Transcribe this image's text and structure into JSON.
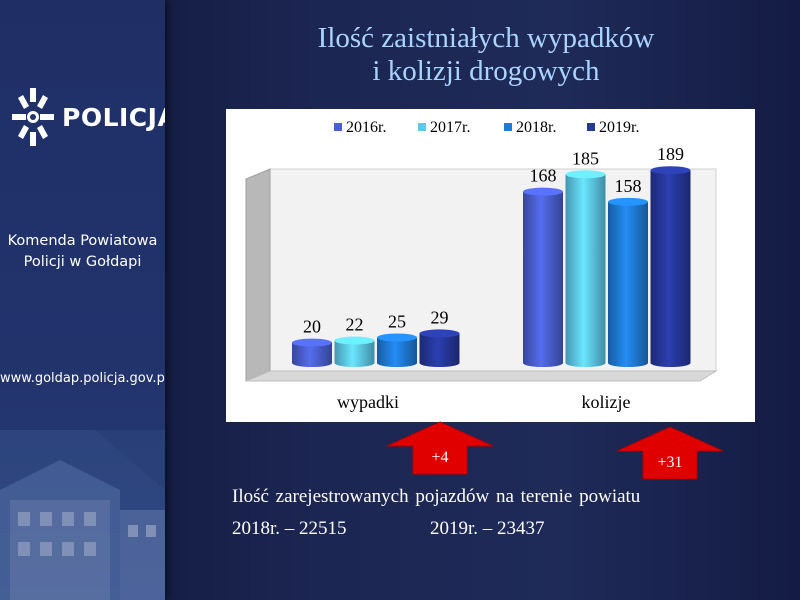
{
  "sidebar": {
    "logo_text": "POLICJA",
    "unit_line1": "Komenda Powiatowa",
    "unit_line2": "Policji w Gołdapi",
    "website": "www.goldap.policja.gov.pl"
  },
  "slide": {
    "title_line1": "Ilość zaistniałych wypadków",
    "title_line2": "i kolizji drogowych",
    "vehicles_title": "Ilość zarejestrowanych pojazdów na terenie powiatu",
    "vehicles_2018": "2018r. – 22515",
    "vehicles_2019": "2019r. – 23437"
  },
  "arrows": [
    {
      "label": "+4"
    },
    {
      "label": "+31"
    }
  ],
  "colors": {
    "accent_arrow": "#e00000",
    "title": "#a8d4ff"
  },
  "chart_data": {
    "type": "bar",
    "categories": [
      "wypadki",
      "kolizje"
    ],
    "series": [
      {
        "name": "2016r.",
        "values": [
          20,
          168
        ],
        "color": "#4a5fd0"
      },
      {
        "name": "2017r.",
        "values": [
          22,
          185
        ],
        "color": "#5cc8ec"
      },
      {
        "name": "2018r.",
        "values": [
          25,
          158
        ],
        "color": "#1f7bd6"
      },
      {
        "name": "2019r.",
        "values": [
          29,
          189
        ],
        "color": "#26379a"
      }
    ],
    "ylim": [
      0,
      200
    ],
    "legend": "top",
    "grid": false,
    "data_labels": true
  }
}
